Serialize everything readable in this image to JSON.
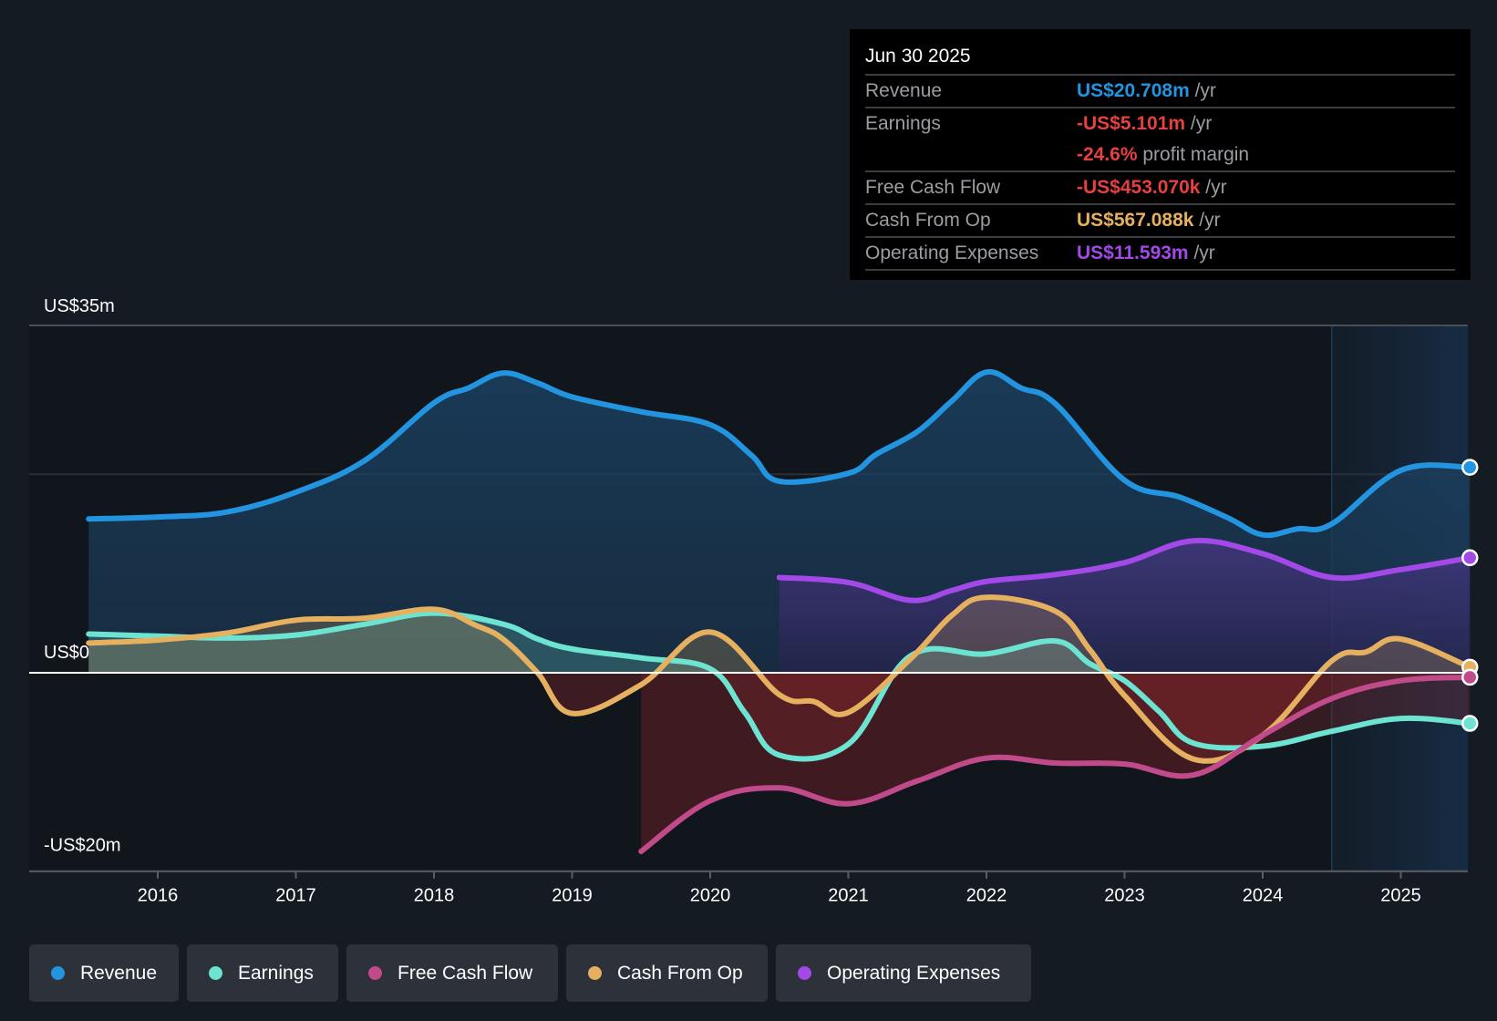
{
  "tooltip": {
    "date": "Jun 30 2025",
    "rows": [
      {
        "label": "Revenue",
        "value": "US$20.708m",
        "suffix": " /yr",
        "color": "#2394df"
      },
      {
        "label": "Earnings",
        "value": "-US$5.101m",
        "suffix": " /yr",
        "color": "#e64141",
        "extra_value": "-24.6%",
        "extra_suffix": " profit margin"
      },
      {
        "label": "Free Cash Flow",
        "value": "-US$453.070k",
        "suffix": " /yr",
        "color": "#e64141"
      },
      {
        "label": "Cash From Op",
        "value": "US$567.088k",
        "suffix": " /yr",
        "color": "#e6b061"
      },
      {
        "label": "Operating Expenses",
        "value": "US$11.593m",
        "suffix": " /yr",
        "color": "#a349e8"
      }
    ]
  },
  "legend": [
    {
      "label": "Revenue",
      "color": "#2394df"
    },
    {
      "label": "Earnings",
      "color": "#6de3d2"
    },
    {
      "label": "Free Cash Flow",
      "color": "#c04a8a"
    },
    {
      "label": "Cash From Op",
      "color": "#e6b061"
    },
    {
      "label": "Operating Expenses",
      "color": "#a349e8"
    }
  ],
  "chart_data": {
    "type": "area",
    "title": "",
    "xlabel": "",
    "ylabel": "",
    "ylim": [
      -20,
      35
    ],
    "xlim": [
      2015.5,
      2025.5
    ],
    "y_tick_labels": [
      {
        "value": 35,
        "label": "US$35m"
      },
      {
        "value": 0,
        "label": "US$0"
      },
      {
        "value": -20,
        "label": "-US$20m"
      }
    ],
    "gridlines": [
      35,
      20
    ],
    "x_ticks": [
      2016,
      2017,
      2018,
      2019,
      2020,
      2021,
      2022,
      2023,
      2024,
      2025
    ],
    "highlight_range": [
      2024.5,
      2025.5
    ],
    "units": "US$ millions",
    "legend_position": "bottom-left",
    "series": [
      {
        "name": "Revenue",
        "color": "#2394df",
        "x": [
          2015.5,
          2016,
          2016.5,
          2017,
          2017.5,
          2018,
          2018.25,
          2018.5,
          2018.75,
          2019,
          2019.5,
          2020,
          2020.3,
          2020.5,
          2021,
          2021.2,
          2021.5,
          2021.75,
          2022,
          2022.25,
          2022.5,
          2023,
          2023.4,
          2023.75,
          2024,
          2024.25,
          2024.5,
          2025,
          2025.5
        ],
        "values": [
          15.5,
          15.7,
          16.2,
          18.2,
          21.4,
          27.2,
          28.7,
          30.2,
          29.2,
          27.8,
          26.3,
          25.0,
          21.9,
          19.3,
          20.1,
          22.0,
          24.3,
          27.4,
          30.3,
          28.7,
          27.1,
          19.4,
          17.7,
          15.6,
          13.9,
          14.5,
          15.0,
          20.4,
          20.708
        ]
      },
      {
        "name": "Operating Expenses",
        "color": "#a349e8",
        "x": [
          2020.5,
          2021,
          2021.45,
          2021.75,
          2022,
          2022.5,
          2023,
          2023.5,
          2024,
          2024.5,
          2025,
          2025.5
        ],
        "values": [
          9.6,
          9.1,
          7.3,
          8.3,
          9.2,
          9.9,
          11.1,
          13.3,
          12.0,
          9.6,
          10.4,
          11.593
        ]
      },
      {
        "name": "Earnings",
        "color": "#6de3d2",
        "x": [
          2015.5,
          2016,
          2016.5,
          2017,
          2017.5,
          2018,
          2018.5,
          2018.75,
          2019,
          2019.5,
          2020,
          2020.25,
          2020.5,
          2021,
          2021.45,
          2022,
          2022.5,
          2022.75,
          2023,
          2023.25,
          2023.5,
          2024,
          2024.5,
          2025,
          2025.5
        ],
        "values": [
          3.9,
          3.7,
          3.5,
          3.8,
          4.9,
          6.0,
          4.9,
          3.4,
          2.4,
          1.5,
          0.4,
          -4.0,
          -8.3,
          -7.2,
          1.7,
          1.9,
          3.2,
          0.9,
          -0.8,
          -3.9,
          -7.1,
          -7.4,
          -5.9,
          -4.6,
          -5.101
        ]
      },
      {
        "name": "Cash From Op",
        "color": "#e6b061",
        "x": [
          2015.5,
          2016,
          2016.5,
          2017,
          2017.5,
          2018,
          2018.3,
          2018.5,
          2018.75,
          2019,
          2019.5,
          2020,
          2020.5,
          2020.75,
          2021,
          2021.45,
          2021.75,
          2022,
          2022.5,
          2022.75,
          2023,
          2023.5,
          2024,
          2024.5,
          2024.75,
          2025,
          2025.5
        ],
        "values": [
          3.0,
          3.3,
          4.0,
          5.3,
          5.5,
          6.4,
          4.8,
          3.4,
          0.0,
          -4.1,
          -1.2,
          4.1,
          -2.2,
          -2.9,
          -4.0,
          1.4,
          5.8,
          7.6,
          6.2,
          2.3,
          -2.3,
          -8.7,
          -6.3,
          1.2,
          2.1,
          3.4,
          0.567
        ]
      },
      {
        "name": "Free Cash Flow",
        "color": "#c04a8a",
        "x": [
          2019.5,
          2020,
          2020.5,
          2021,
          2021.5,
          2022,
          2022.5,
          2023,
          2023.5,
          2024,
          2024.5,
          2025,
          2025.5
        ],
        "values": [
          -18.0,
          -12.9,
          -11.6,
          -13.2,
          -10.9,
          -8.6,
          -9.1,
          -9.2,
          -10.3,
          -6.3,
          -2.6,
          -0.8,
          -0.453
        ]
      }
    ]
  }
}
